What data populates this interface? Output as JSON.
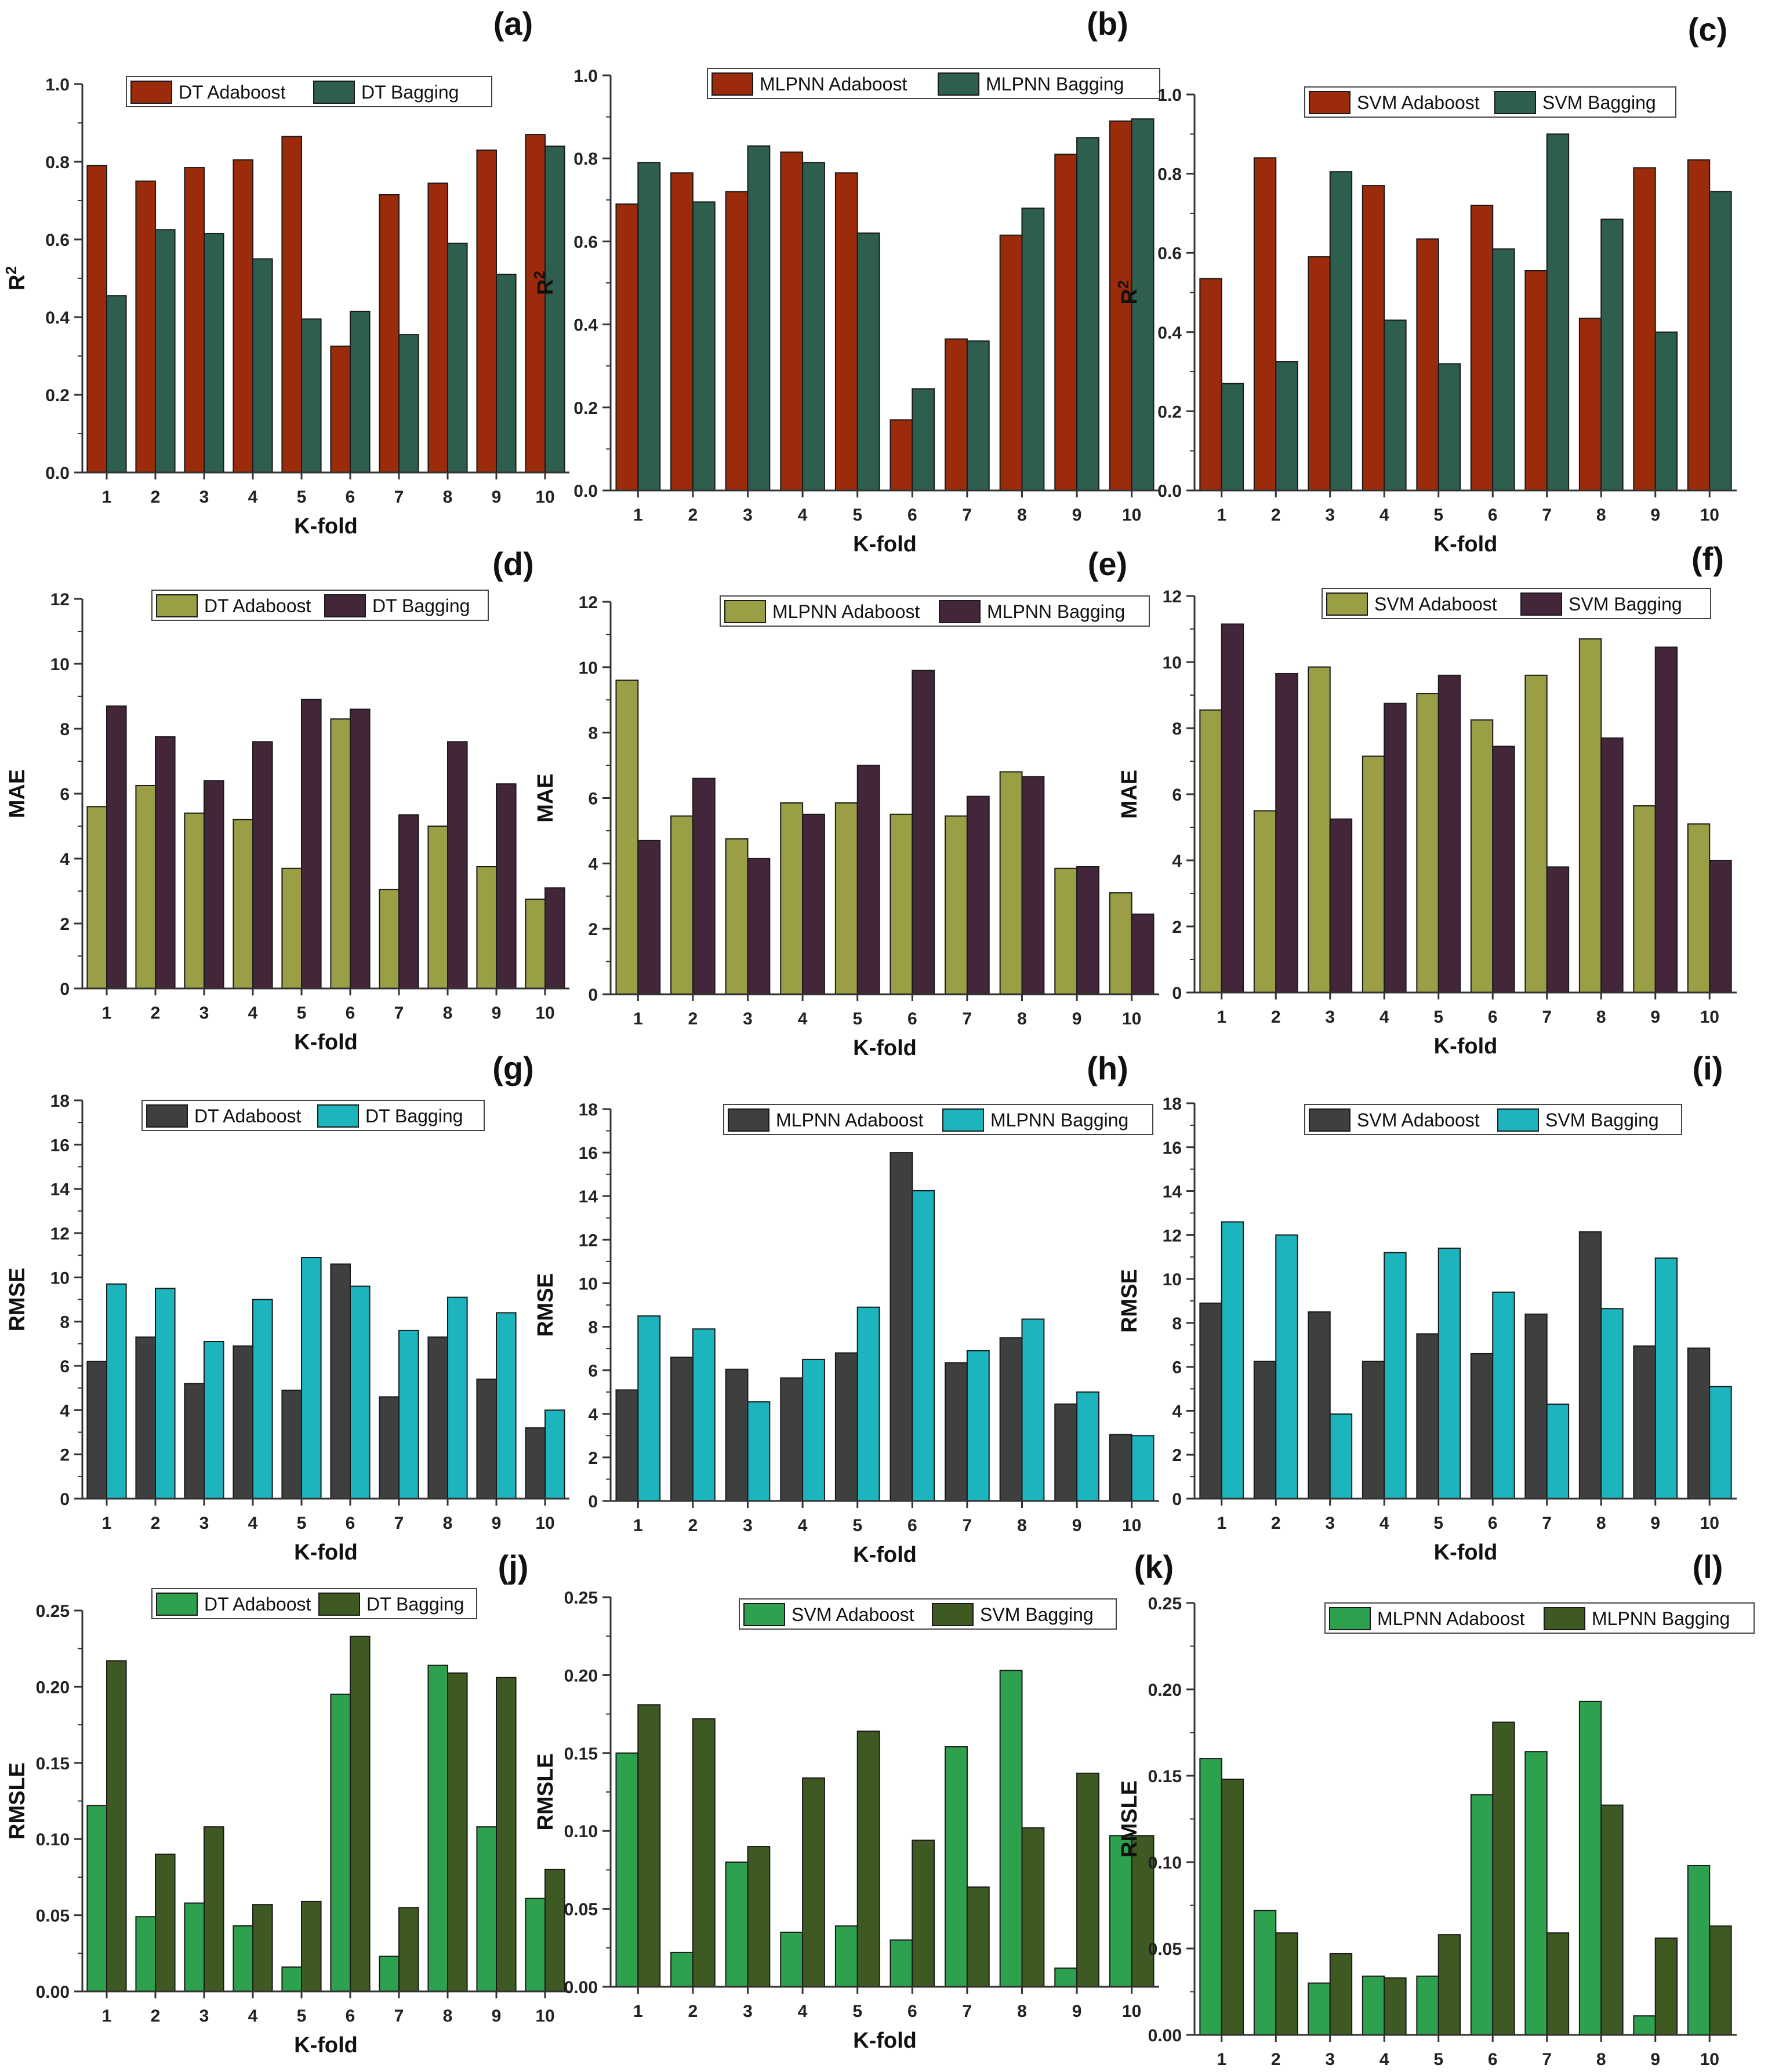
{
  "figure": {
    "colors": {
      "adaboost_r2": "#9B2B0A",
      "bagging_r2": "#2E5E4D",
      "adaboost_mae": "#9A9E45",
      "bagging_mae": "#43263A",
      "adaboost_rmse": "#3F3F3F",
      "bagging_rmse": "#1CB4BD",
      "adaboost_rmsle": "#2EA14E",
      "bagging_rmsle": "#3E5A22"
    }
  },
  "chart_data": [
    {
      "panel_label": "(a)",
      "type": "bar",
      "xlabel": "K-fold",
      "ylabel": "R²",
      "ylim": [
        0,
        1.0
      ],
      "yticks": [
        "0.0",
        "0.2",
        "0.4",
        "0.6",
        "0.8",
        "1.0"
      ],
      "categories": [
        "1",
        "2",
        "3",
        "4",
        "5",
        "6",
        "7",
        "8",
        "9",
        "10"
      ],
      "colors": [
        "#9B2B0A",
        "#2E5E4D"
      ],
      "series": [
        {
          "name": "DT Adaboost",
          "values": [
            0.79,
            0.75,
            0.785,
            0.805,
            0.865,
            0.325,
            0.715,
            0.745,
            0.83,
            0.87
          ]
        },
        {
          "name": "DT Bagging",
          "values": [
            0.455,
            0.625,
            0.615,
            0.55,
            0.395,
            0.415,
            0.355,
            0.59,
            0.51,
            0.84
          ]
        }
      ]
    },
    {
      "panel_label": "(b)",
      "type": "bar",
      "xlabel": "K-fold",
      "ylabel": "R²",
      "ylim": [
        0,
        1.0
      ],
      "yticks": [
        "0.0",
        "0.2",
        "0.4",
        "0.6",
        "0.8",
        "1.0"
      ],
      "categories": [
        "1",
        "2",
        "3",
        "4",
        "5",
        "6",
        "7",
        "8",
        "9",
        "10"
      ],
      "colors": [
        "#9B2B0A",
        "#2E5E4D"
      ],
      "series": [
        {
          "name": "MLPNN Adaboost",
          "values": [
            0.69,
            0.765,
            0.72,
            0.815,
            0.765,
            0.17,
            0.365,
            0.615,
            0.81,
            0.89
          ]
        },
        {
          "name": "MLPNN Bagging",
          "values": [
            0.79,
            0.695,
            0.83,
            0.79,
            0.62,
            0.245,
            0.36,
            0.68,
            0.85,
            0.895
          ]
        }
      ]
    },
    {
      "panel_label": "(c)",
      "type": "bar",
      "xlabel": "K-fold",
      "ylabel": "R²",
      "ylim": [
        0,
        1.0
      ],
      "yticks": [
        "0.0",
        "0.2",
        "0.4",
        "0.6",
        "0.8",
        "1.0"
      ],
      "categories": [
        "1",
        "2",
        "3",
        "4",
        "5",
        "6",
        "7",
        "8",
        "9",
        "10"
      ],
      "colors": [
        "#9B2B0A",
        "#2E5E4D"
      ],
      "series": [
        {
          "name": "SVM Adaboost",
          "values": [
            0.535,
            0.84,
            0.59,
            0.77,
            0.635,
            0.72,
            0.555,
            0.435,
            0.815,
            0.835
          ]
        },
        {
          "name": "SVM Bagging",
          "values": [
            0.27,
            0.325,
            0.805,
            0.43,
            0.32,
            0.61,
            0.9,
            0.685,
            0.4,
            0.755
          ]
        }
      ]
    },
    {
      "panel_label": "(d)",
      "type": "bar",
      "xlabel": "K-fold",
      "ylabel": "MAE",
      "ylim": [
        0,
        12
      ],
      "yticks": [
        "0",
        "2",
        "4",
        "6",
        "8",
        "10",
        "12"
      ],
      "categories": [
        "1",
        "2",
        "3",
        "4",
        "5",
        "6",
        "7",
        "8",
        "9",
        "10"
      ],
      "colors": [
        "#9A9E45",
        "#43263A"
      ],
      "series": [
        {
          "name": "DT Adaboost",
          "values": [
            5.6,
            6.25,
            5.4,
            5.2,
            3.7,
            8.3,
            3.05,
            5.0,
            3.75,
            2.75
          ]
        },
        {
          "name": "DT Bagging",
          "values": [
            8.7,
            7.75,
            6.4,
            7.6,
            8.9,
            8.6,
            5.35,
            7.6,
            6.3,
            3.1
          ]
        }
      ]
    },
    {
      "panel_label": "(e)",
      "type": "bar",
      "xlabel": "K-fold",
      "ylabel": "MAE",
      "ylim": [
        0,
        12
      ],
      "yticks": [
        "0",
        "2",
        "4",
        "6",
        "8",
        "10",
        "12"
      ],
      "categories": [
        "1",
        "2",
        "3",
        "4",
        "5",
        "6",
        "7",
        "8",
        "9",
        "10"
      ],
      "colors": [
        "#9A9E45",
        "#43263A"
      ],
      "series": [
        {
          "name": "MLPNN Adaboost",
          "values": [
            9.6,
            5.45,
            4.75,
            5.85,
            5.85,
            5.5,
            5.45,
            6.8,
            3.85,
            3.1
          ]
        },
        {
          "name": "MLPNN Bagging",
          "values": [
            4.7,
            6.6,
            4.15,
            5.5,
            7.0,
            9.9,
            6.05,
            6.65,
            3.9,
            2.45
          ]
        }
      ]
    },
    {
      "panel_label": "(f)",
      "type": "bar",
      "xlabel": "K-fold",
      "ylabel": "MAE",
      "ylim": [
        0,
        12
      ],
      "yticks": [
        "0",
        "2",
        "4",
        "6",
        "8",
        "10",
        "12"
      ],
      "categories": [
        "1",
        "2",
        "3",
        "4",
        "5",
        "6",
        "7",
        "8",
        "9",
        "10"
      ],
      "colors": [
        "#9A9E45",
        "#43263A"
      ],
      "series": [
        {
          "name": "SVM Adaboost",
          "values": [
            8.55,
            5.5,
            9.85,
            7.15,
            9.05,
            8.25,
            9.6,
            10.7,
            5.65,
            5.1
          ]
        },
        {
          "name": "SVM Bagging",
          "values": [
            11.15,
            9.65,
            5.25,
            8.75,
            9.6,
            7.45,
            3.8,
            7.7,
            10.45,
            4.0
          ]
        }
      ]
    },
    {
      "panel_label": "(g)",
      "type": "bar",
      "xlabel": "K-fold",
      "ylabel": "RMSE",
      "ylim": [
        0,
        18
      ],
      "yticks": [
        "0",
        "2",
        "4",
        "6",
        "8",
        "10",
        "12",
        "14",
        "16",
        "18"
      ],
      "categories": [
        "1",
        "2",
        "3",
        "4",
        "5",
        "6",
        "7",
        "8",
        "9",
        "10"
      ],
      "colors": [
        "#3F3F3F",
        "#1CB4BD"
      ],
      "series": [
        {
          "name": "DT Adaboost",
          "values": [
            6.2,
            7.3,
            5.2,
            6.9,
            4.9,
            10.6,
            4.6,
            7.3,
            5.4,
            3.2
          ]
        },
        {
          "name": "DT Bagging",
          "values": [
            9.7,
            9.5,
            7.1,
            9.0,
            10.9,
            9.6,
            7.6,
            9.1,
            8.4,
            4.0
          ]
        }
      ]
    },
    {
      "panel_label": "(h)",
      "type": "bar",
      "xlabel": "K-fold",
      "ylabel": "RMSE",
      "ylim": [
        0,
        18
      ],
      "yticks": [
        "0",
        "2",
        "4",
        "6",
        "8",
        "10",
        "12",
        "14",
        "16",
        "18"
      ],
      "categories": [
        "1",
        "2",
        "3",
        "4",
        "5",
        "6",
        "7",
        "8",
        "9",
        "10"
      ],
      "colors": [
        "#3F3F3F",
        "#1CB4BD"
      ],
      "series": [
        {
          "name": "MLPNN Adaboost",
          "values": [
            5.1,
            6.6,
            6.05,
            5.65,
            6.8,
            16.0,
            6.35,
            7.5,
            4.45,
            3.05
          ]
        },
        {
          "name": "MLPNN Bagging",
          "values": [
            8.5,
            7.9,
            4.55,
            6.5,
            8.9,
            14.25,
            6.9,
            8.35,
            5.0,
            3.0
          ]
        }
      ]
    },
    {
      "panel_label": "(i)",
      "type": "bar",
      "xlabel": "K-fold",
      "ylabel": "RMSE",
      "ylim": [
        0,
        18
      ],
      "yticks": [
        "0",
        "2",
        "4",
        "6",
        "8",
        "10",
        "12",
        "14",
        "16",
        "18"
      ],
      "categories": [
        "1",
        "2",
        "3",
        "4",
        "5",
        "6",
        "7",
        "8",
        "9",
        "10"
      ],
      "colors": [
        "#3F3F3F",
        "#1CB4BD"
      ],
      "series": [
        {
          "name": "SVM Adaboost",
          "values": [
            8.9,
            6.25,
            8.5,
            6.25,
            7.5,
            6.6,
            8.4,
            12.15,
            6.95,
            6.85
          ]
        },
        {
          "name": "SVM Bagging",
          "values": [
            12.6,
            12.0,
            3.85,
            11.2,
            11.4,
            9.4,
            4.3,
            8.65,
            10.95,
            5.1
          ]
        }
      ]
    },
    {
      "panel_label": "(j)",
      "type": "bar",
      "xlabel": "K-fold",
      "ylabel": "RMSLE",
      "ylim": [
        0,
        0.25
      ],
      "yticks": [
        "0.00",
        "0.05",
        "0.10",
        "0.15",
        "0.20",
        "0.25"
      ],
      "categories": [
        "1",
        "2",
        "3",
        "4",
        "5",
        "6",
        "7",
        "8",
        "9",
        "10"
      ],
      "colors": [
        "#2EA14E",
        "#3E5A22"
      ],
      "series": [
        {
          "name": "DT Adaboost",
          "values": [
            0.122,
            0.049,
            0.058,
            0.043,
            0.016,
            0.195,
            0.023,
            0.214,
            0.108,
            0.061
          ]
        },
        {
          "name": "DT Bagging",
          "values": [
            0.217,
            0.09,
            0.108,
            0.057,
            0.059,
            0.233,
            0.055,
            0.209,
            0.206,
            0.08
          ]
        }
      ]
    },
    {
      "panel_label": "(k)",
      "type": "bar",
      "xlabel": "K-fold",
      "ylabel": "RMSLE",
      "ylim": [
        0,
        0.25
      ],
      "yticks": [
        "0.00",
        "0.05",
        "0.10",
        "0.15",
        "0.20",
        "0.25"
      ],
      "categories": [
        "1",
        "2",
        "3",
        "4",
        "5",
        "6",
        "7",
        "8",
        "9",
        "10"
      ],
      "colors": [
        "#2EA14E",
        "#3E5A22"
      ],
      "series": [
        {
          "name": "SVM Adaboost",
          "values": [
            0.15,
            0.022,
            0.08,
            0.035,
            0.039,
            0.03,
            0.154,
            0.203,
            0.012,
            0.097
          ]
        },
        {
          "name": "SVM Bagging",
          "values": [
            0.181,
            0.172,
            0.09,
            0.134,
            0.164,
            0.094,
            0.064,
            0.102,
            0.137,
            0.097
          ]
        }
      ]
    },
    {
      "panel_label": "(l)",
      "type": "bar",
      "xlabel": "K-fold",
      "ylabel": "RMSLE",
      "ylim": [
        0,
        0.25
      ],
      "yticks": [
        "0.00",
        "0.05",
        "0.10",
        "0.15",
        "0.20",
        "0.25"
      ],
      "categories": [
        "1",
        "2",
        "3",
        "4",
        "5",
        "6",
        "7",
        "8",
        "9",
        "10"
      ],
      "colors": [
        "#2EA14E",
        "#3E5A22"
      ],
      "series": [
        {
          "name": "MLPNN Adaboost",
          "values": [
            0.16,
            0.072,
            0.03,
            0.034,
            0.034,
            0.139,
            0.164,
            0.193,
            0.011,
            0.098
          ]
        },
        {
          "name": "MLPNN Bagging",
          "values": [
            0.148,
            0.059,
            0.047,
            0.033,
            0.058,
            0.181,
            0.059,
            0.133,
            0.056,
            0.063
          ]
        }
      ]
    }
  ]
}
